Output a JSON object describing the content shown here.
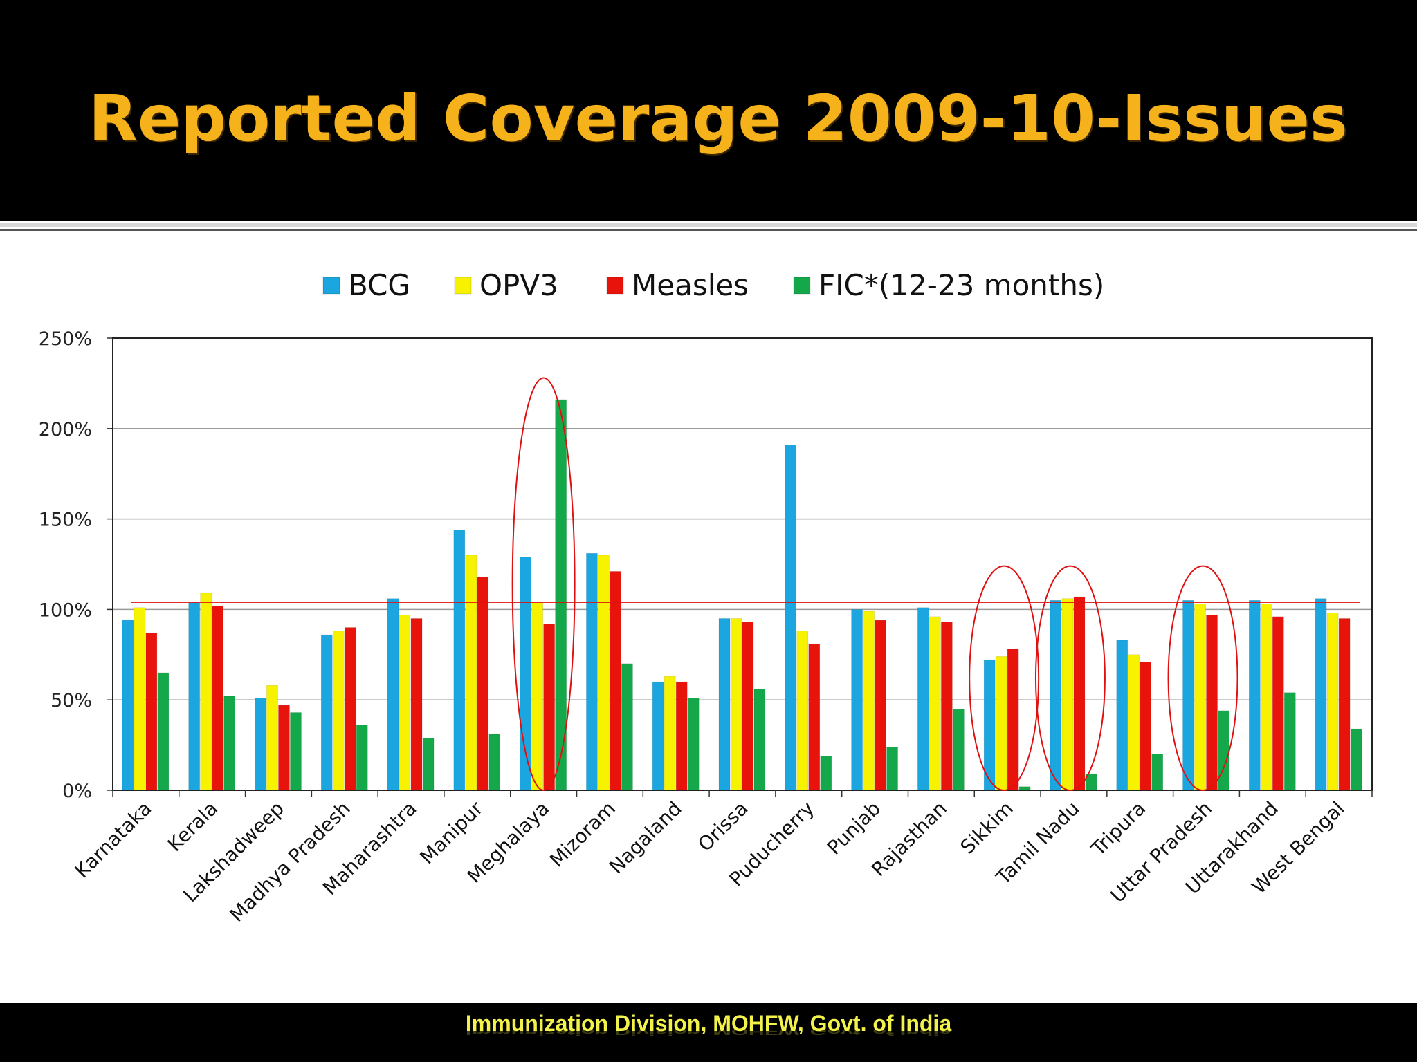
{
  "slide": {
    "title": "Reported Coverage 2009-10-Issues",
    "footer": "Immunization Division, MOHFW, Govt. of India"
  },
  "chart_data": {
    "type": "bar",
    "categories": [
      "Karnataka",
      "Kerala",
      "Lakshadweep",
      "Madhya Pradesh",
      "Maharashtra",
      "Manipur",
      "Meghalaya",
      "Mizoram",
      "Nagaland",
      "Orissa",
      "Puducherry",
      "Punjab",
      "Rajasthan",
      "Sikkim",
      "Tamil Nadu",
      "Tripura",
      "Uttar Pradesh",
      "Uttarakhand",
      "West Bengal"
    ],
    "series": [
      {
        "name": "BCG",
        "color": "#1BA6E0",
        "values": [
          94,
          104,
          51,
          86,
          106,
          144,
          129,
          131,
          60,
          95,
          191,
          100,
          101,
          72,
          105,
          83,
          105,
          105,
          106
        ]
      },
      {
        "name": "OPV3",
        "color": "#F7F200",
        "values": [
          101,
          109,
          58,
          88,
          97,
          130,
          104,
          130,
          63,
          95,
          88,
          99,
          96,
          74,
          106,
          75,
          103,
          103,
          98
        ]
      },
      {
        "name": "Measles",
        "color": "#E8140C",
        "values": [
          87,
          102,
          47,
          90,
          95,
          118,
          92,
          121,
          60,
          93,
          81,
          94,
          93,
          78,
          107,
          71,
          97,
          96,
          95
        ]
      },
      {
        "name": "FIC*(12-23 months)",
        "color": "#14A84A",
        "values": [
          65,
          52,
          43,
          36,
          29,
          null,
          216,
          70,
          51,
          56,
          19,
          24,
          45,
          2,
          9,
          20,
          44,
          54,
          34
        ]
      }
    ],
    "series_extra": {
      "Manipur_FIC": 31
    },
    "y_ticks": [
      "0%",
      "50%",
      "100%",
      "150%",
      "200%",
      "250%"
    ],
    "ylim": [
      0,
      250
    ],
    "reference_line": 104,
    "highlighted_categories": [
      "Meghalaya",
      "Sikkim",
      "Tamil Nadu",
      "Uttar Pradesh"
    ],
    "legend_position": "top",
    "grid": true
  }
}
